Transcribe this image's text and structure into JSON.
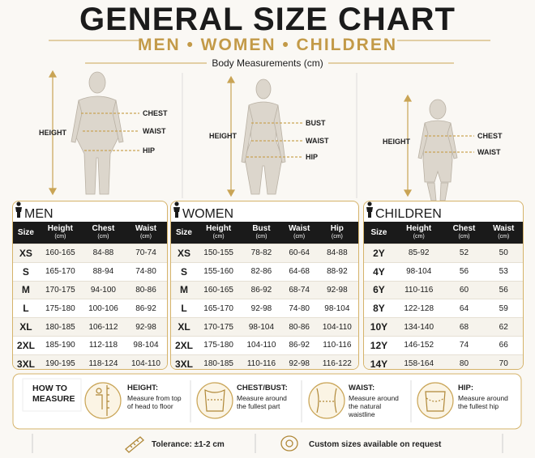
{
  "header": {
    "title": "GENERAL SIZE CHART",
    "subtitle": "MEN • WOMEN • CHILDREN",
    "caption": "Body Measurements (cm)"
  },
  "figures": {
    "men": {
      "height": "HEIGHT",
      "labels": [
        "CHEST",
        "WAIST",
        "HIP"
      ]
    },
    "women": {
      "height": "HEIGHT",
      "labels": [
        "BUST",
        "WAIST",
        "HIP"
      ]
    },
    "children": {
      "height": "HEIGHT",
      "labels": [
        "CHEST",
        "WAIST"
      ]
    }
  },
  "tables": [
    {
      "title": "MEN",
      "columns": [
        {
          "label": "Size"
        },
        {
          "label": "Height",
          "unit": "(cm)"
        },
        {
          "label": "Chest",
          "unit": "(cm)"
        },
        {
          "label": "Waist",
          "unit": "(cm)"
        }
      ],
      "rows": [
        [
          "XS",
          "160-165",
          "84-88",
          "70-74"
        ],
        [
          "S",
          "165-170",
          "88-94",
          "74-80"
        ],
        [
          "M",
          "170-175",
          "94-100",
          "80-86"
        ],
        [
          "L",
          "175-180",
          "100-106",
          "86-92"
        ],
        [
          "XL",
          "180-185",
          "106-112",
          "92-98"
        ],
        [
          "2XL",
          "185-190",
          "112-118",
          "98-104"
        ],
        [
          "3XL",
          "190-195",
          "118-124",
          "104-110"
        ]
      ]
    },
    {
      "title": "WOMEN",
      "columns": [
        {
          "label": "Size"
        },
        {
          "label": "Height",
          "unit": "(cm)"
        },
        {
          "label": "Bust",
          "unit": "(cm)"
        },
        {
          "label": "Waist",
          "unit": "(cm)"
        },
        {
          "label": "Hip",
          "unit": "(cm)"
        }
      ],
      "rows": [
        [
          "XS",
          "150-155",
          "78-82",
          "60-64",
          "84-88"
        ],
        [
          "S",
          "155-160",
          "82-86",
          "64-68",
          "88-92"
        ],
        [
          "M",
          "160-165",
          "86-92",
          "68-74",
          "92-98"
        ],
        [
          "L",
          "165-170",
          "92-98",
          "74-80",
          "98-104"
        ],
        [
          "XL",
          "170-175",
          "98-104",
          "80-86",
          "104-110"
        ],
        [
          "2XL",
          "175-180",
          "104-110",
          "86-92",
          "110-116"
        ],
        [
          "3XL",
          "180-185",
          "110-116",
          "92-98",
          "116-122"
        ]
      ]
    },
    {
      "title": "CHILDREN",
      "columns": [
        {
          "label": "Size"
        },
        {
          "label": "Height",
          "unit": "(cm)"
        },
        {
          "label": "Chest",
          "unit": "(cm)"
        },
        {
          "label": "Waist",
          "unit": "(cm)"
        }
      ],
      "rows": [
        [
          "2Y",
          "85-92",
          "52",
          "50"
        ],
        [
          "4Y",
          "98-104",
          "56",
          "53"
        ],
        [
          "6Y",
          "110-116",
          "60",
          "56"
        ],
        [
          "8Y",
          "122-128",
          "64",
          "59"
        ],
        [
          "10Y",
          "134-140",
          "68",
          "62"
        ],
        [
          "12Y",
          "146-152",
          "74",
          "66"
        ],
        [
          "14Y",
          "158-164",
          "80",
          "70"
        ]
      ]
    }
  ],
  "how_to_measure": {
    "title": "HOW TO MEASURE",
    "items": [
      {
        "heading": "HEIGHT:",
        "text": "Measure from top of head to floor"
      },
      {
        "heading": "CHEST/BUST:",
        "text": "Measure around the fullest part"
      },
      {
        "heading": "WAIST:",
        "text": "Measure around the natural waistline"
      },
      {
        "heading": "HIP:",
        "text": "Measure around the fullest hip"
      }
    ]
  },
  "footer": {
    "tolerance": "Tolerance: ±1-2 cm",
    "custom": "Custom sizes available on request"
  }
}
